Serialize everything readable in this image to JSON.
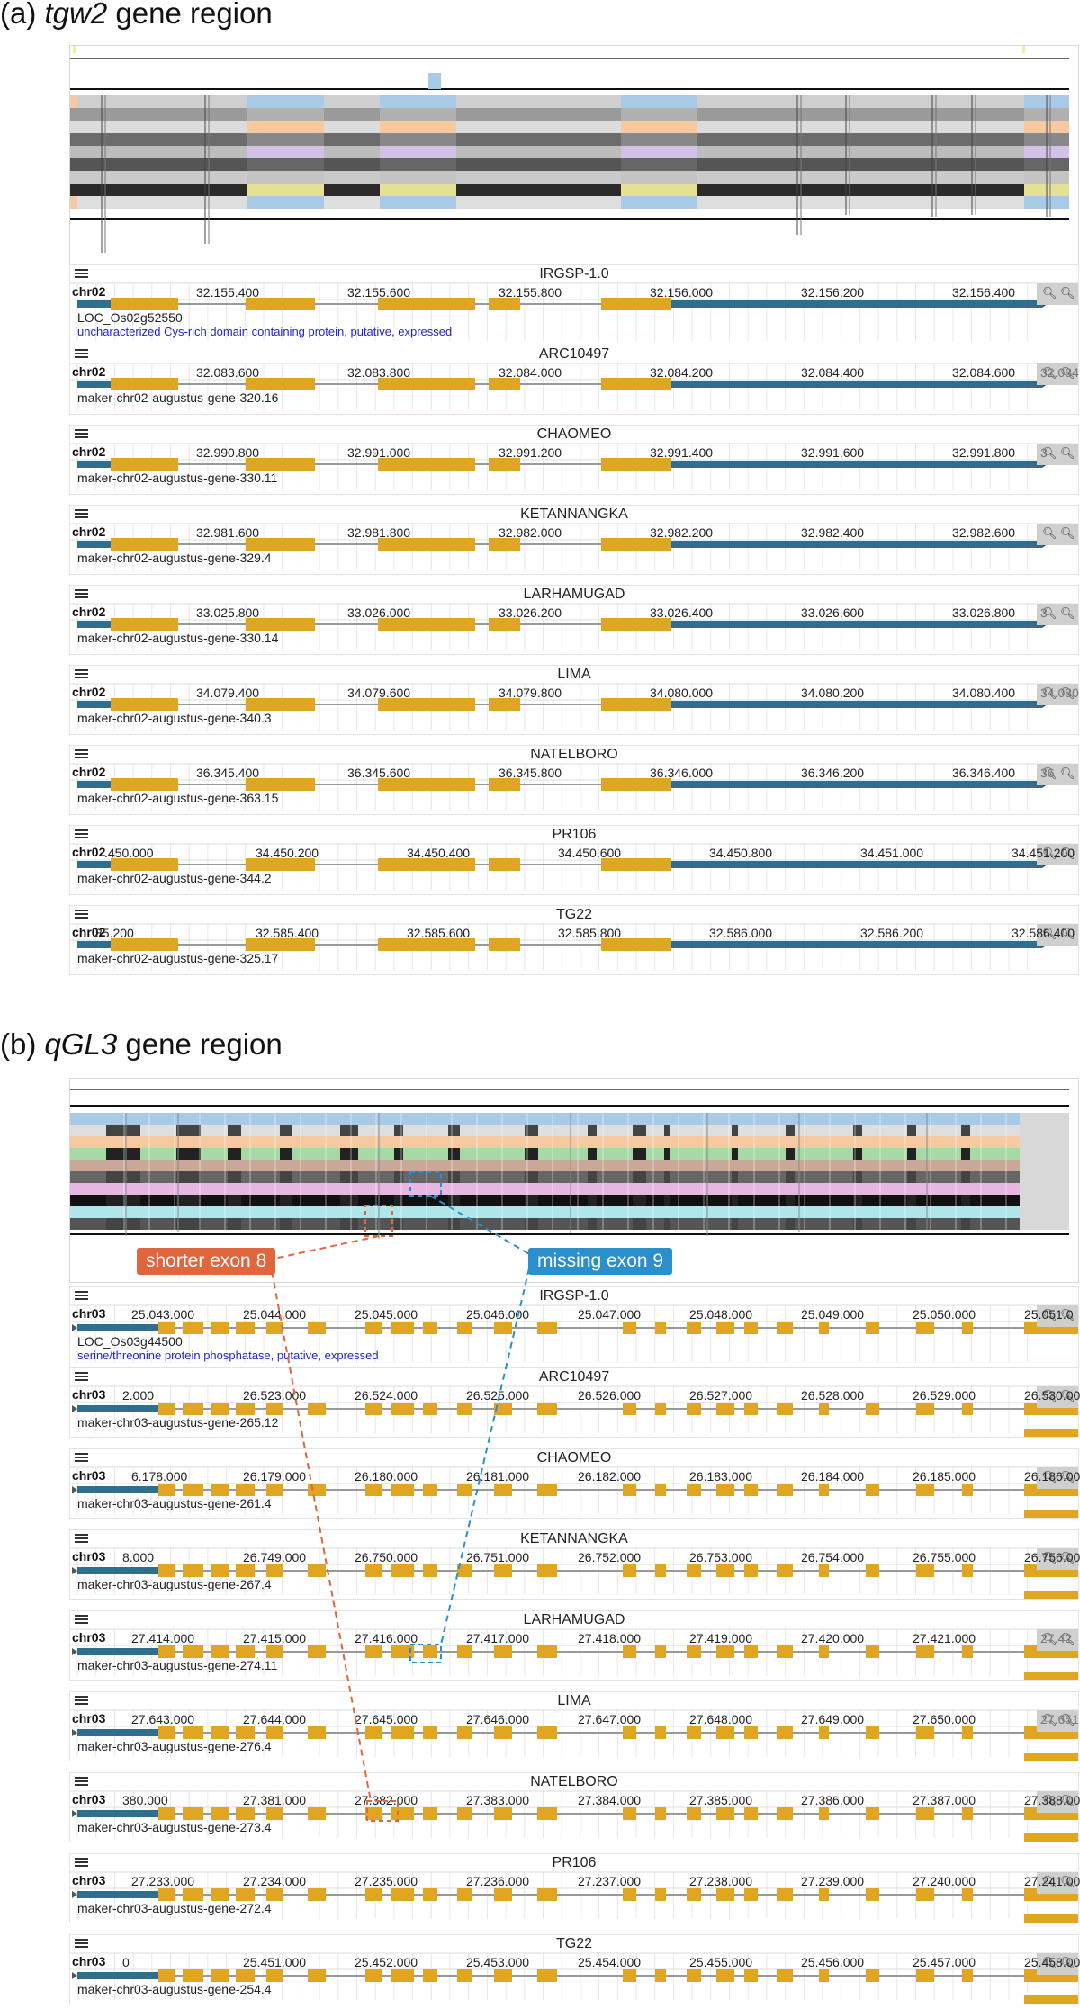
{
  "colors": {
    "exon": "#e0a622",
    "utr": "#2f6e8c",
    "annotation_link": "#2222dd",
    "shorter_exon": "#e0663e",
    "missing_exon": "#2b8fcc"
  },
  "sections": [
    {
      "label_prefix": "(a)",
      "gene": "tgw2",
      "label_suffix": "gene region",
      "tracks": [
        {
          "name": "IRGSP-1.0",
          "chrom": "chr02",
          "ticks": [
            "32.155.400",
            "32.155.600",
            "32.155.800",
            "32.156.000",
            "32.156.200",
            "32.156.400"
          ],
          "gene": "LOC_Os02g52550",
          "description": "uncharacterized Cys-rich domain containing protein, putative, expressed",
          "zoom_extra": ""
        },
        {
          "name": "ARC10497",
          "chrom": "chr02",
          "ticks": [
            "32.083.600",
            "32.083.800",
            "32.084.000",
            "32.084.200",
            "32.084.400",
            "32.084.600"
          ],
          "gene": "maker-chr02-augustus-gene-320.16",
          "description": "",
          "zoom_extra": "32.084"
        },
        {
          "name": "CHAOMEO",
          "chrom": "chr02",
          "ticks": [
            "32.990.800",
            "32.991.000",
            "32.991.200",
            "32.991.400",
            "32.991.600",
            "32.991.800"
          ],
          "gene": "maker-chr02-augustus-gene-330.11",
          "description": "",
          "zoom_extra": "3"
        },
        {
          "name": "KETANNANGKA",
          "chrom": "chr02",
          "ticks": [
            "32.981.600",
            "32.981.800",
            "32.982.000",
            "32.982.200",
            "32.982.400",
            "32.982.600"
          ],
          "gene": "maker-chr02-augustus-gene-329.4",
          "description": "",
          "zoom_extra": ""
        },
        {
          "name": "LARHAMUGAD",
          "chrom": "chr02",
          "ticks": [
            "33.025.800",
            "33.026.000",
            "33.026.200",
            "33.026.400",
            "33.026.600",
            "33.026.800"
          ],
          "gene": "maker-chr02-augustus-gene-330.14",
          "description": "",
          "zoom_extra": "3"
        },
        {
          "name": "LIMA",
          "chrom": "chr02",
          "ticks": [
            "34.079.400",
            "34.079.600",
            "34.079.800",
            "34.080.000",
            "34.080.200",
            "34.080.400"
          ],
          "gene": "maker-chr02-augustus-gene-340.3",
          "description": "",
          "zoom_extra": "34.080"
        },
        {
          "name": "NATELBORO",
          "chrom": "chr02",
          "ticks": [
            "36.345.400",
            "36.345.600",
            "36.345.800",
            "36.346.000",
            "36.346.200",
            "36.346.400"
          ],
          "gene": "maker-chr02-augustus-gene-363.15",
          "description": "",
          "zoom_extra": "36"
        },
        {
          "name": "PR106",
          "chrom": "chr02",
          "ticks": [
            ".450.000",
            "34.450.200",
            "34.450.400",
            "34.450.600",
            "34.450.800",
            "34.451.000",
            "34.451.200"
          ],
          "gene": "maker-chr02-augustus-gene-344.2",
          "description": "",
          "zoom_extra": ""
        },
        {
          "name": "TG22",
          "chrom": "chr02",
          "ticks": [
            "85.200",
            "32.585.400",
            "32.585.600",
            "32.585.800",
            "32.586.000",
            "32.586.200",
            "32.586.400"
          ],
          "gene": "maker-chr02-augustus-gene-325.17",
          "description": "",
          "zoom_extra": ""
        }
      ]
    },
    {
      "label_prefix": "(b)",
      "gene": "qGL3",
      "label_suffix": "gene region",
      "tracks": [
        {
          "name": "IRGSP-1.0",
          "chrom": "chr03",
          "ticks": [
            "25.043.000",
            "25.044.000",
            "25.045.000",
            "25.046.000",
            "25.047.000",
            "25.048.000",
            "25.049.000",
            "25.050.000",
            "25.051.0"
          ],
          "gene": "LOC_Os03g44500",
          "description": "serine/threonine protein phosphatase, putative, expressed",
          "zoom_extra": ""
        },
        {
          "name": "ARC10497",
          "chrom": "chr03",
          "ticks": [
            "2.000",
            "26.523.000",
            "26.524.000",
            "26.525.000",
            "26.526.000",
            "26.527.000",
            "26.528.000",
            "26.529.000",
            "26.530.000"
          ],
          "gene": "maker-chr03-augustus-gene-265.12",
          "description": "",
          "zoom_extra": ""
        },
        {
          "name": "CHAOMEO",
          "chrom": "chr03",
          "ticks": [
            "6.178.000",
            "26.179.000",
            "26.180.000",
            "26.181.000",
            "26.182.000",
            "26.183.000",
            "26.184.000",
            "26.185.000",
            "26.186.000"
          ],
          "gene": "maker-chr03-augustus-gene-261.4",
          "description": "",
          "zoom_extra": ""
        },
        {
          "name": "KETANNANGKA",
          "chrom": "chr03",
          "ticks": [
            "8.000",
            "26.749.000",
            "26.750.000",
            "26.751.000",
            "26.752.000",
            "26.753.000",
            "26.754.000",
            "26.755.000",
            "26.756.000"
          ],
          "gene": "maker-chr03-augustus-gene-267.4",
          "description": "",
          "zoom_extra": ""
        },
        {
          "name": "LARHAMUGAD",
          "chrom": "chr03",
          "ticks": [
            "27.414.000",
            "27.415.000",
            "27.416.000",
            "27.417.000",
            "27.418.000",
            "27.419.000",
            "27.420.000",
            "27.421.000"
          ],
          "gene": "maker-chr03-augustus-gene-274.11",
          "description": "",
          "zoom_extra": "27.42"
        },
        {
          "name": "LIMA",
          "chrom": "chr03",
          "ticks": [
            "27.643.000",
            "27.644.000",
            "27.645.000",
            "27.646.000",
            "27.647.000",
            "27.648.000",
            "27.649.000",
            "27.650.000"
          ],
          "gene": "maker-chr03-augustus-gene-276.4",
          "description": "",
          "zoom_extra": "27.651"
        },
        {
          "name": "NATELBORO",
          "chrom": "chr03",
          "ticks": [
            "380.000",
            "27.381.000",
            "27.382.000",
            "27.383.000",
            "27.384.000",
            "27.385.000",
            "27.386.000",
            "27.387.000",
            "27.388.000"
          ],
          "gene": "maker-chr03-augustus-gene-273.4",
          "description": "",
          "zoom_extra": ""
        },
        {
          "name": "PR106",
          "chrom": "chr03",
          "ticks": [
            "27.233.000",
            "27.234.000",
            "27.235.000",
            "27.236.000",
            "27.237.000",
            "27.238.000",
            "27.239.000",
            "27.240.000",
            "27.241.000"
          ],
          "gene": "maker-chr03-augustus-gene-272.4",
          "description": "",
          "zoom_extra": ""
        },
        {
          "name": "TG22",
          "chrom": "chr03",
          "ticks": [
            "0",
            "25.451.000",
            "25.452.000",
            "25.453.000",
            "25.454.000",
            "25.455.000",
            "25.456.000",
            "25.457.000",
            "25.458.000"
          ],
          "gene": "maker-chr03-augustus-gene-254.4",
          "description": "",
          "zoom_extra": ""
        }
      ]
    }
  ],
  "callouts": {
    "shorter_exon": "shorter exon 8",
    "missing_exon": "missing exon 9"
  }
}
